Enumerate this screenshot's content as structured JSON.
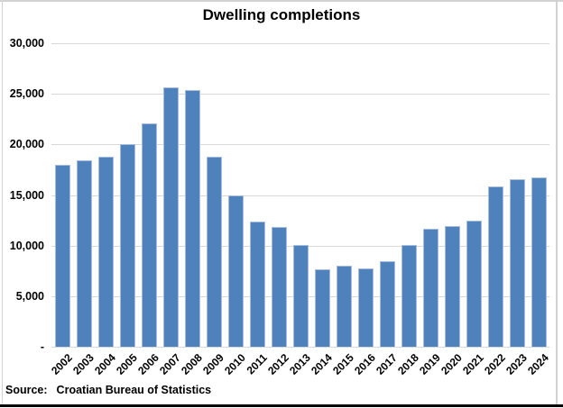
{
  "title": "Dwelling completions",
  "source": {
    "label": "Source:",
    "text": "Croatian Bureau of Statistics"
  },
  "chart_data": {
    "type": "bar",
    "title": "Dwelling completions",
    "categories": [
      "2002",
      "2003",
      "2004",
      "2005",
      "2006",
      "2007",
      "2008",
      "2009",
      "2010",
      "2011",
      "2012",
      "2013",
      "2014",
      "2015",
      "2016",
      "2017",
      "2018",
      "2019",
      "2020",
      "2021",
      "2022",
      "2023",
      "2024"
    ],
    "values": [
      18000,
      18450,
      18800,
      20000,
      22100,
      25650,
      25400,
      18750,
      15000,
      12400,
      11800,
      10050,
      7700,
      8000,
      7750,
      8450,
      10100,
      11650,
      11950,
      12450,
      15850,
      16550,
      16700
    ],
    "xlabel": "",
    "ylabel": "",
    "ylim": [
      0,
      30000
    ],
    "ytick_interval": 5000,
    "ytick_labels_top_down": [
      "30,000",
      "25,000",
      "20,000",
      "15,000",
      "10,000",
      "5,000",
      "-"
    ],
    "grid": true,
    "legend": false,
    "colors": {
      "bar_fill": "#4F81BD",
      "bar_edge": "#A3BEDE",
      "gridline": "#D9D9D9",
      "frame_side": "#D2D2D2",
      "frame_bottom": "#000000",
      "text": "#000000",
      "background": "#FFFFFF"
    }
  }
}
